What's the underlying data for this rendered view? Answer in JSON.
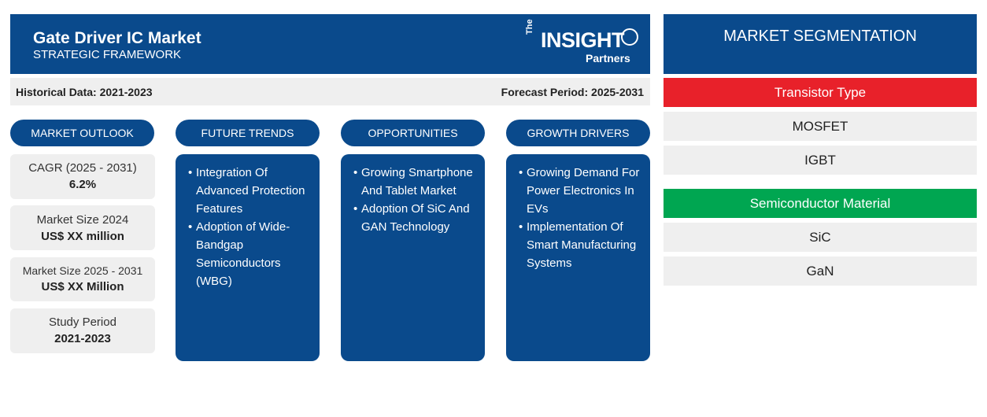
{
  "header": {
    "title": "Gate Driver IC Market",
    "subtitle": "STRATEGIC FRAMEWORK",
    "logo": {
      "the": "The",
      "insight": "INSIGHT",
      "partners": "Partners"
    }
  },
  "periods": {
    "historical": "Historical Data: 2021-2023",
    "forecast": "Forecast Period: 2025-2031"
  },
  "columns": {
    "market_outlook": "MARKET OUTLOOK",
    "future_trends": "FUTURE TRENDS",
    "opportunities": "OPPORTUNITIES",
    "growth_drivers": "GROWTH DRIVERS"
  },
  "stats": [
    {
      "label": "CAGR (2025 - 2031)",
      "value": "6.2%"
    },
    {
      "label": "Market Size 2024",
      "value": "US$ XX million"
    },
    {
      "label": "Market Size 2025 - 2031",
      "value": "US$ XX Million"
    },
    {
      "label": "Study Period",
      "value": "2021-2023"
    }
  ],
  "future_trends": [
    "Integration Of Advanced Protection Features",
    "Adoption of Wide-Bandgap Semiconductors (WBG)"
  ],
  "opportunities": [
    "Growing Smartphone And Tablet Market",
    "Adoption Of SiC And GAN Technology"
  ],
  "growth_drivers": [
    "Growing Demand For Power Electronics In EVs",
    "Implementation Of Smart Manufacturing Systems"
  ],
  "segmentation": {
    "title": "MARKET SEGMENTATION",
    "categories": [
      {
        "name": "Transistor Type",
        "color": "#e8212a",
        "items": [
          "MOSFET",
          "IGBT"
        ]
      },
      {
        "name": "Semiconductor Material",
        "color": "#00a651",
        "items": [
          "SiC",
          "GaN"
        ]
      }
    ]
  }
}
